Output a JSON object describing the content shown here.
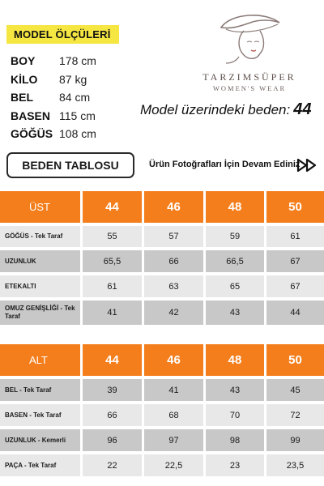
{
  "model": {
    "badge": "MODEL ÖLÇÜLERİ",
    "measures": [
      {
        "label": "BOY",
        "value": "178 cm"
      },
      {
        "label": "KİLO",
        "value": "87 kg"
      },
      {
        "label": "BEL",
        "value": "84 cm"
      },
      {
        "label": "BASEN",
        "value": "115 cm"
      },
      {
        "label": "GÖĞÜS",
        "value": "108 cm"
      }
    ],
    "size_text": "Model üzerindeki beden:",
    "size_value": "44"
  },
  "brand": {
    "name": "TARZIMSÜPER",
    "tagline": "WOMEN'S WEAR"
  },
  "actions": {
    "size_table_button": "BEDEN TABLOSU",
    "continue_text": "Ürün Fotoğrafları İçin Devam Ediniz",
    "continue_icon": "double-play-icon"
  },
  "colors": {
    "accent": "#f47e1c",
    "badge": "#f5e642",
    "row_light": "#e8e8e8",
    "row_dark": "#c8c8c8"
  },
  "tables": {
    "upper": {
      "header": [
        "ÜST",
        "44",
        "46",
        "48",
        "50"
      ],
      "rows": [
        [
          "GÖĞÜS - Tek Taraf",
          "55",
          "57",
          "59",
          "61"
        ],
        [
          "UZUNLUK",
          "65,5",
          "66",
          "66,5",
          "67"
        ],
        [
          "ETEKALTI",
          "61",
          "63",
          "65",
          "67"
        ],
        [
          "OMUZ GENİŞLİĞİ - Tek Taraf",
          "41",
          "42",
          "43",
          "44"
        ]
      ]
    },
    "lower": {
      "header": [
        "ALT",
        "44",
        "46",
        "48",
        "50"
      ],
      "rows": [
        [
          "BEL - Tek Taraf",
          "39",
          "41",
          "43",
          "45"
        ],
        [
          "BASEN - Tek Taraf",
          "66",
          "68",
          "70",
          "72"
        ],
        [
          "UZUNLUK - Kemerli",
          "96",
          "97",
          "98",
          "99"
        ],
        [
          "PAÇA - Tek Taraf",
          "22",
          "22,5",
          "23",
          "23,5"
        ]
      ]
    }
  }
}
